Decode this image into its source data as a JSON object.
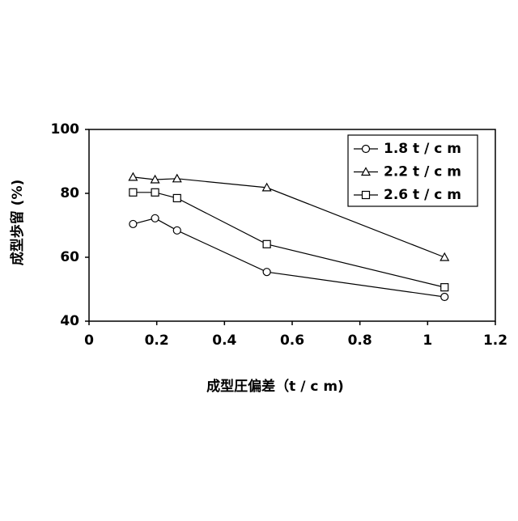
{
  "chart_data": {
    "type": "line",
    "x_label": "成型圧偏差（t / c m)",
    "y_label": "成型歩留 (%)",
    "xlim": [
      0,
      1.2
    ],
    "xticks": [
      0,
      0.2,
      0.4,
      0.6,
      0.8,
      1,
      1.2
    ],
    "ylim": [
      40,
      100
    ],
    "yticks": [
      40,
      60,
      80,
      100
    ],
    "grid": false,
    "legend": "upper right",
    "series": [
      {
        "name": "1.8 t / c m",
        "color": "#000000",
        "marker": "circle",
        "x": [
          0.13,
          0.195,
          0.26,
          0.525,
          1.05
        ],
        "values": [
          70.4,
          72.2,
          68.4,
          55.4,
          47.6
        ]
      },
      {
        "name": "2.2 t / c m",
        "color": "#000000",
        "marker": "triangle",
        "x": [
          0.13,
          0.195,
          0.26,
          0.525,
          1.05
        ],
        "values": [
          85.1,
          84.3,
          84.6,
          81.8,
          60
        ]
      },
      {
        "name": "2.6 t / c m",
        "color": "#000000",
        "marker": "square",
        "x": [
          0.13,
          0.195,
          0.26,
          0.525,
          1.05
        ],
        "values": [
          80.3,
          80.3,
          78.5,
          64.1,
          50.6
        ]
      }
    ]
  }
}
